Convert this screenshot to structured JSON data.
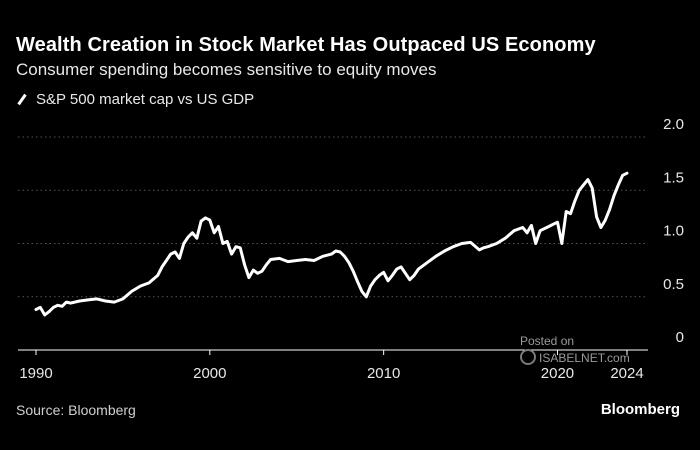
{
  "colors": {
    "background": "#000000",
    "line": "#ffffff",
    "grid": "#555555",
    "text": "#ffffff",
    "muted": "#cfcfcf"
  },
  "header": {
    "title": "Wealth Creation in Stock Market Has Outpaced US Economy",
    "subtitle": "Consumer spending becomes sensitive to equity moves"
  },
  "legend": {
    "label": "S&P 500 market cap vs US GDP"
  },
  "footer": {
    "source": "Source: Bloomberg",
    "brand": "Bloomberg"
  },
  "watermark": {
    "line1": "Posted on",
    "line2": "ISABELNET.com"
  },
  "chart_data": {
    "type": "line",
    "title": "Wealth Creation in Stock Market Has Outpaced US Economy",
    "subtitle": "Consumer spending becomes sensitive to equity moves",
    "xlabel": "",
    "ylabel": "",
    "xlim": [
      1990,
      2024.5
    ],
    "ylim": [
      0,
      2.0
    ],
    "x_ticks": [
      1990,
      2000,
      2010,
      2020,
      2024
    ],
    "x_tick_labels": [
      "1990",
      "2000",
      "2010",
      "2020",
      "2024"
    ],
    "y_ticks": [
      0,
      0.5,
      1.0,
      1.5,
      2.0
    ],
    "y_tick_labels": [
      "0",
      "0.5",
      "1.0",
      "1.5",
      "2.0"
    ],
    "grid": "horizontal dotted",
    "legend_position": "top-left",
    "series": [
      {
        "name": "S&P 500 market cap vs US GDP",
        "x": [
          1990.0,
          1990.25,
          1990.5,
          1990.75,
          1991.0,
          1991.25,
          1991.5,
          1991.75,
          1992.0,
          1992.5,
          1993.0,
          1993.5,
          1994.0,
          1994.5,
          1995.0,
          1995.5,
          1996.0,
          1996.5,
          1997.0,
          1997.25,
          1997.5,
          1997.75,
          1998.0,
          1998.25,
          1998.5,
          1998.75,
          1999.0,
          1999.25,
          1999.5,
          1999.75,
          2000.0,
          2000.25,
          2000.5,
          2000.75,
          2001.0,
          2001.25,
          2001.5,
          2001.75,
          2002.0,
          2002.25,
          2002.5,
          2002.75,
          2003.0,
          2003.25,
          2003.5,
          2004.0,
          2004.5,
          2005.0,
          2005.5,
          2006.0,
          2006.5,
          2007.0,
          2007.25,
          2007.5,
          2007.75,
          2008.0,
          2008.25,
          2008.5,
          2008.75,
          2009.0,
          2009.25,
          2009.5,
          2009.75,
          2010.0,
          2010.25,
          2010.5,
          2010.75,
          2011.0,
          2011.25,
          2011.5,
          2011.75,
          2012.0,
          2012.5,
          2013.0,
          2013.5,
          2014.0,
          2014.5,
          2015.0,
          2015.5,
          2015.75,
          2016.0,
          2016.5,
          2017.0,
          2017.5,
          2018.0,
          2018.25,
          2018.5,
          2018.75,
          2019.0,
          2019.5,
          2019.75,
          2020.0,
          2020.25,
          2020.5,
          2020.75,
          2021.0,
          2021.25,
          2021.5,
          2021.75,
          2022.0,
          2022.25,
          2022.5,
          2022.75,
          2023.0,
          2023.25,
          2023.5,
          2023.75,
          2024.0
        ],
        "values": [
          0.38,
          0.4,
          0.33,
          0.36,
          0.4,
          0.42,
          0.41,
          0.45,
          0.44,
          0.46,
          0.47,
          0.48,
          0.46,
          0.45,
          0.48,
          0.55,
          0.6,
          0.63,
          0.7,
          0.78,
          0.84,
          0.9,
          0.92,
          0.86,
          1.0,
          1.06,
          1.1,
          1.05,
          1.21,
          1.24,
          1.22,
          1.1,
          1.16,
          1.0,
          1.02,
          0.9,
          0.97,
          0.96,
          0.8,
          0.68,
          0.75,
          0.72,
          0.74,
          0.8,
          0.85,
          0.86,
          0.83,
          0.84,
          0.85,
          0.84,
          0.88,
          0.9,
          0.93,
          0.92,
          0.88,
          0.82,
          0.74,
          0.64,
          0.55,
          0.5,
          0.6,
          0.66,
          0.7,
          0.73,
          0.65,
          0.7,
          0.76,
          0.78,
          0.72,
          0.66,
          0.7,
          0.76,
          0.82,
          0.88,
          0.93,
          0.97,
          1.0,
          1.01,
          0.94,
          0.96,
          0.97,
          1.0,
          1.05,
          1.12,
          1.15,
          1.1,
          1.17,
          1.0,
          1.12,
          1.16,
          1.18,
          1.2,
          1.0,
          1.3,
          1.28,
          1.4,
          1.5,
          1.55,
          1.6,
          1.52,
          1.25,
          1.15,
          1.22,
          1.32,
          1.45,
          1.55,
          1.64,
          1.66
        ]
      }
    ]
  }
}
